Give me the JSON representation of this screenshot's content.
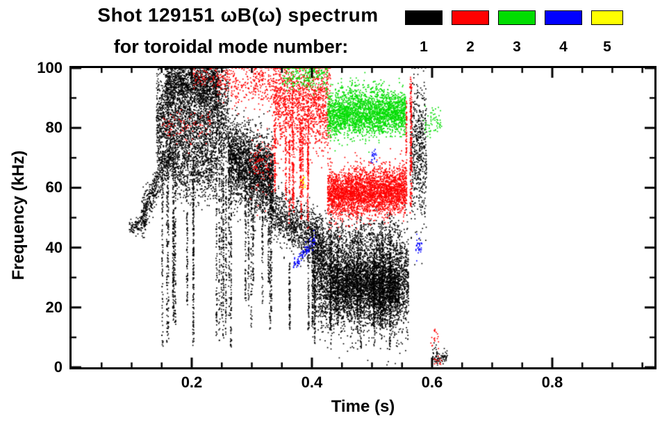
{
  "title": {
    "line1": "Shot 129151 ωB(ω) spectrum",
    "line2": "for toroidal mode number:"
  },
  "legend": {
    "entries": [
      {
        "label": "1",
        "color": "#000000"
      },
      {
        "label": "2",
        "color": "#ff0000"
      },
      {
        "label": "3",
        "color": "#00dd00"
      },
      {
        "label": "4",
        "color": "#0000ff"
      },
      {
        "label": "5",
        "color": "#ffff00"
      }
    ]
  },
  "chart_data": {
    "type": "scatter",
    "title": "Shot 129151 ωB(ω) spectrum for toroidal mode number",
    "xlabel": "Time (s)",
    "ylabel": "Frequency (kHz)",
    "xlim": [
      0.0,
      0.97
    ],
    "ylim": [
      0,
      100
    ],
    "xticks": [
      0.2,
      0.4,
      0.6,
      0.8
    ],
    "xtick_labels": [
      "0.2",
      "0.4",
      "0.6",
      "0.8"
    ],
    "xminor": [
      0.05,
      0.1,
      0.15,
      0.25,
      0.3,
      0.35,
      0.45,
      0.5,
      0.55,
      0.65,
      0.7,
      0.75,
      0.85,
      0.9,
      0.95
    ],
    "yticks": [
      0,
      20,
      40,
      60,
      80,
      100
    ],
    "yminor": [
      10,
      30,
      50,
      70,
      90
    ],
    "grid": false,
    "legend_position": "top-right",
    "series": [
      {
        "name": "mode n=1",
        "mode": 1,
        "color": "#000000",
        "clusters": [
          {
            "kind": "blob",
            "t": [
              0.095,
              0.125
            ],
            "fc": [
              46,
              49
            ],
            "spread": 1.5,
            "n": 120
          },
          {
            "kind": "blob",
            "t": [
              0.115,
              0.165
            ],
            "fc": [
              50,
              72
            ],
            "spread": 3,
            "n": 450
          },
          {
            "kind": "blob",
            "t": [
              0.14,
              0.26
            ],
            "fc": [
              82,
              84
            ],
            "spread": 9,
            "n": 2600
          },
          {
            "kind": "blob",
            "t": [
              0.155,
              0.245
            ],
            "fc": [
              95,
              95
            ],
            "spread": 4,
            "n": 1200
          },
          {
            "kind": "blob",
            "t": [
              0.165,
              0.24
            ],
            "fc": [
              68,
              66
            ],
            "spread": 6,
            "n": 700
          },
          {
            "kind": "streaks",
            "t": [
              0.145,
              0.265
            ],
            "flow": [
              4,
              22
            ],
            "fhigh": [
              55,
              90
            ],
            "count": 14,
            "pts": 90
          },
          {
            "kind": "blob",
            "t": [
              0.26,
              0.335
            ],
            "fc": [
              70,
              62
            ],
            "spread": 6.5,
            "n": 2400
          },
          {
            "kind": "streaks",
            "t": [
              0.25,
              0.3
            ],
            "flow": [
              8,
              25
            ],
            "fhigh": [
              50,
              80
            ],
            "count": 5,
            "pts": 60
          },
          {
            "kind": "blob",
            "t": [
              0.33,
              0.42
            ],
            "fc": [
              53,
              41
            ],
            "spread": 4.5,
            "n": 1100
          },
          {
            "kind": "streaks",
            "t": [
              0.29,
              0.345
            ],
            "flow": [
              10,
              30
            ],
            "fhigh": [
              45,
              60
            ],
            "count": 6,
            "pts": 60
          },
          {
            "kind": "blob",
            "t": [
              0.4,
              0.56
            ],
            "fc": [
              30,
              28
            ],
            "spread": 8,
            "n": 4200
          },
          {
            "kind": "blob",
            "t": [
              0.43,
              0.545
            ],
            "fc": [
              27,
              26
            ],
            "spread": 5,
            "n": 1800
          },
          {
            "kind": "blob",
            "t": [
              0.42,
              0.55
            ],
            "fc": [
              44,
              43
            ],
            "spread": 3,
            "n": 300
          },
          {
            "kind": "streaks",
            "t": [
              0.35,
              0.545
            ],
            "flow": [
              3,
              15
            ],
            "fhigh": [
              35,
              55
            ],
            "count": 16,
            "pts": 80
          },
          {
            "kind": "blob",
            "t": [
              0.563,
              0.59
            ],
            "fc": [
              75,
              72
            ],
            "spread": 12,
            "n": 550
          },
          {
            "kind": "blob",
            "t": [
              0.6,
              0.625
            ],
            "fc": [
              3.5,
              3.5
            ],
            "spread": 1.5,
            "n": 80
          }
        ]
      },
      {
        "name": "mode n=2",
        "mode": 2,
        "color": "#ff0000",
        "clusters": [
          {
            "kind": "blob",
            "t": [
              0.15,
              0.23
            ],
            "fc": [
              80,
              80
            ],
            "spread": 3,
            "n": 80
          },
          {
            "kind": "blob",
            "t": [
              0.2,
              0.24
            ],
            "fc": [
              97,
              97
            ],
            "spread": 2,
            "n": 60
          },
          {
            "kind": "blob",
            "t": [
              0.24,
              0.345
            ],
            "fc": [
              95,
              95
            ],
            "spread": 4,
            "n": 350
          },
          {
            "kind": "blob",
            "t": [
              0.295,
              0.34
            ],
            "fc": [
              66,
              70
            ],
            "spread": 5,
            "n": 120
          },
          {
            "kind": "blob",
            "t": [
              0.335,
              0.43
            ],
            "fc": [
              88,
              88
            ],
            "spread": 8,
            "n": 1400
          },
          {
            "kind": "streaks",
            "t": [
              0.33,
              0.43
            ],
            "flow": [
              45,
              60
            ],
            "fhigh": [
              75,
              95
            ],
            "count": 10,
            "pts": 70
          },
          {
            "kind": "blob",
            "t": [
              0.425,
              0.555
            ],
            "fc": [
              58,
              59
            ],
            "spread": 4,
            "n": 3200
          },
          {
            "kind": "streaks",
            "t": [
              0.555,
              0.565
            ],
            "flow": [
              45,
              55
            ],
            "fhigh": [
              85,
              100
            ],
            "count": 3,
            "pts": 90
          },
          {
            "kind": "blob",
            "t": [
              0.595,
              0.61
            ],
            "fc": [
              10,
              10
            ],
            "spread": 1.5,
            "n": 18
          },
          {
            "kind": "blob",
            "t": [
              0.6,
              0.615
            ],
            "fc": [
              2.5,
              2.5
            ],
            "spread": 1,
            "n": 12
          }
        ]
      },
      {
        "name": "mode n=3",
        "mode": 3,
        "color": "#00dd00",
        "clusters": [
          {
            "kind": "blob",
            "t": [
              0.425,
              0.555
            ],
            "fc": [
              84,
              85
            ],
            "spread": 3.5,
            "n": 2400
          },
          {
            "kind": "blob",
            "t": [
              0.44,
              0.52
            ],
            "fc": [
              92,
              92
            ],
            "spread": 2,
            "n": 150
          },
          {
            "kind": "blob",
            "t": [
              0.35,
              0.425
            ],
            "fc": [
              97,
              97
            ],
            "spread": 2.5,
            "n": 220
          },
          {
            "kind": "blob",
            "t": [
              0.585,
              0.615
            ],
            "fc": [
              81,
              82
            ],
            "spread": 3,
            "n": 60
          }
        ]
      },
      {
        "name": "mode n=4",
        "mode": 4,
        "color": "#0000ff",
        "clusters": [
          {
            "kind": "blob",
            "t": [
              0.368,
              0.405
            ],
            "fc": [
              34,
              43
            ],
            "spread": 1.2,
            "n": 90
          },
          {
            "kind": "blob",
            "t": [
              0.497,
              0.507
            ],
            "fc": [
              70,
              71
            ],
            "spread": 1.2,
            "n": 20
          },
          {
            "kind": "blob",
            "t": [
              0.572,
              0.582
            ],
            "fc": [
              40,
              41
            ],
            "spread": 1.5,
            "n": 30
          }
        ]
      },
      {
        "name": "mode n=5",
        "mode": 5,
        "color": "#ffff00",
        "clusters": [
          {
            "kind": "blob",
            "t": [
              0.38,
              0.388
            ],
            "fc": [
              62,
              62
            ],
            "spread": 1,
            "n": 14
          }
        ]
      }
    ]
  }
}
